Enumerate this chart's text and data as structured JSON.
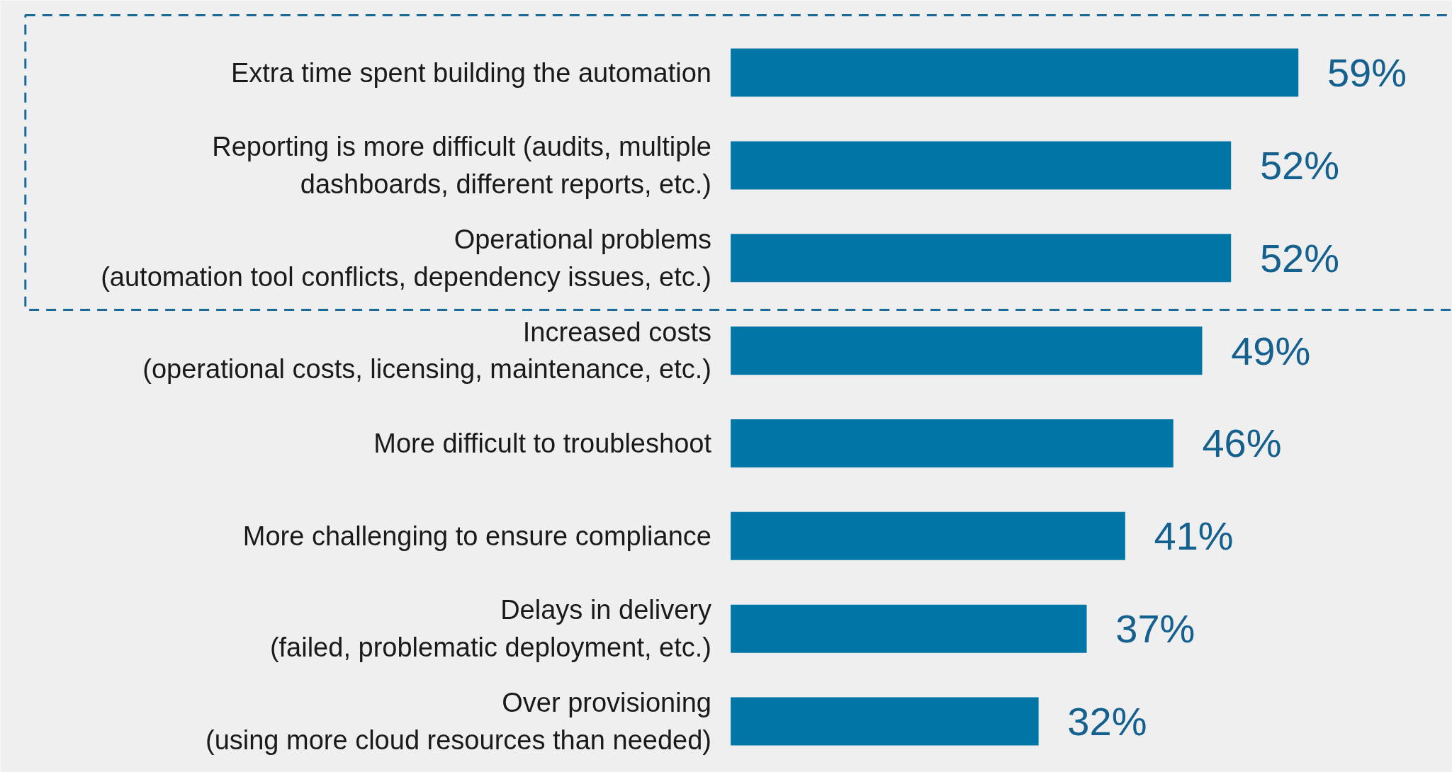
{
  "chart_data": {
    "type": "bar",
    "orientation": "horizontal",
    "categories": [
      "Extra time spent building the automation",
      "Reporting is more difficult (audits, multiple dashboards, different reports, etc.)",
      "Operational problems (automation tool conflicts, dependency issues, etc.)",
      "Increased costs (operational costs, licensing, maintenance, etc.)",
      "More difficult to troubleshoot",
      "More challenging to ensure compliance",
      "Delays in delivery (failed, problematic deployment, etc.)",
      "Over provisioning (using more cloud resources than needed)"
    ],
    "values": [
      59,
      52,
      52,
      49,
      46,
      41,
      37,
      32
    ],
    "value_labels": [
      "59%",
      "52%",
      "52%",
      "49%",
      "46%",
      "41%",
      "37%",
      "32%"
    ],
    "color": "#0076a6",
    "grid": false
  }
}
